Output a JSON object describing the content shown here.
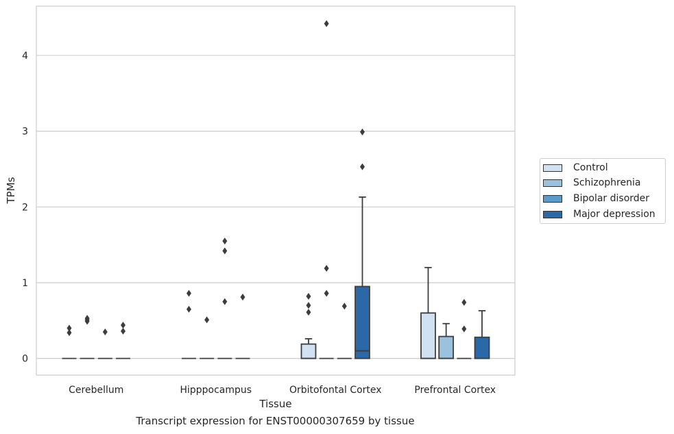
{
  "chart_data": {
    "type": "box",
    "xlabel": "Tissue",
    "ylabel": "TPMs",
    "ylim": [
      -0.22,
      4.65
    ],
    "yticks": [
      0,
      1,
      2,
      3,
      4
    ],
    "grid": "horizontal",
    "categories": [
      "Cerebellum",
      "Hipppocampus",
      "Orbitofontal Cortex",
      "Prefrontal Cortex"
    ],
    "legend_position": "right",
    "series": [
      {
        "name": "Control",
        "color": "#d0e2f2",
        "boxes": [
          {
            "q1": 0,
            "median": 0,
            "q3": 0,
            "whisker_low": 0,
            "whisker_high": 0,
            "outliers": [
              0.34,
              0.4
            ]
          },
          {
            "q1": 0,
            "median": 0,
            "q3": 0,
            "whisker_low": 0,
            "whisker_high": 0,
            "outliers": [
              0.65,
              0.86
            ]
          },
          {
            "q1": 0,
            "median": 0,
            "q3": 0.19,
            "whisker_low": 0,
            "whisker_high": 0.26,
            "outliers": [
              0.61,
              0.7,
              0.82
            ]
          },
          {
            "q1": 0,
            "median": 0,
            "q3": 0.6,
            "whisker_low": 0,
            "whisker_high": 1.2,
            "outliers": []
          }
        ]
      },
      {
        "name": "Schizophrenia",
        "color": "#9ac1dd",
        "boxes": [
          {
            "q1": 0,
            "median": 0,
            "q3": 0,
            "whisker_low": 0,
            "whisker_high": 0,
            "outliers": [
              0.49,
              0.51,
              0.53
            ]
          },
          {
            "q1": 0,
            "median": 0,
            "q3": 0,
            "whisker_low": 0,
            "whisker_high": 0,
            "outliers": [
              0.51
            ]
          },
          {
            "q1": 0,
            "median": 0,
            "q3": 0,
            "whisker_low": 0,
            "whisker_high": 0,
            "outliers": [
              0.86,
              1.19,
              4.42
            ]
          },
          {
            "q1": 0,
            "median": 0,
            "q3": 0.29,
            "whisker_low": 0,
            "whisker_high": 0.46,
            "outliers": []
          }
        ]
      },
      {
        "name": "Bipolar disorder",
        "color": "#5b9ac9",
        "boxes": [
          {
            "q1": 0,
            "median": 0,
            "q3": 0,
            "whisker_low": 0,
            "whisker_high": 0,
            "outliers": [
              0.35
            ]
          },
          {
            "q1": 0,
            "median": 0,
            "q3": 0,
            "whisker_low": 0,
            "whisker_high": 0,
            "outliers": [
              0.75,
              1.42,
              1.55
            ]
          },
          {
            "q1": 0,
            "median": 0,
            "q3": 0,
            "whisker_low": 0,
            "whisker_high": 0,
            "outliers": [
              0.69
            ]
          },
          {
            "q1": 0,
            "median": 0,
            "q3": 0,
            "whisker_low": 0,
            "whisker_high": 0,
            "outliers": [
              0.39,
              0.74
            ]
          }
        ]
      },
      {
        "name": "Major depression",
        "color": "#2a68a8",
        "boxes": [
          {
            "q1": 0,
            "median": 0,
            "q3": 0,
            "whisker_low": 0,
            "whisker_high": 0,
            "outliers": [
              0.36,
              0.44
            ]
          },
          {
            "q1": 0,
            "median": 0,
            "q3": 0,
            "whisker_low": 0,
            "whisker_high": 0,
            "outliers": [
              0.81
            ]
          },
          {
            "q1": 0,
            "median": 0.1,
            "q3": 0.95,
            "whisker_low": 0,
            "whisker_high": 2.13,
            "outliers": [
              2.53,
              2.99
            ]
          },
          {
            "q1": 0,
            "median": 0,
            "q3": 0.28,
            "whisker_low": 0,
            "whisker_high": 0.63,
            "outliers": []
          }
        ]
      }
    ]
  },
  "caption": "Transcript expression for ENST00000307659 by tissue"
}
